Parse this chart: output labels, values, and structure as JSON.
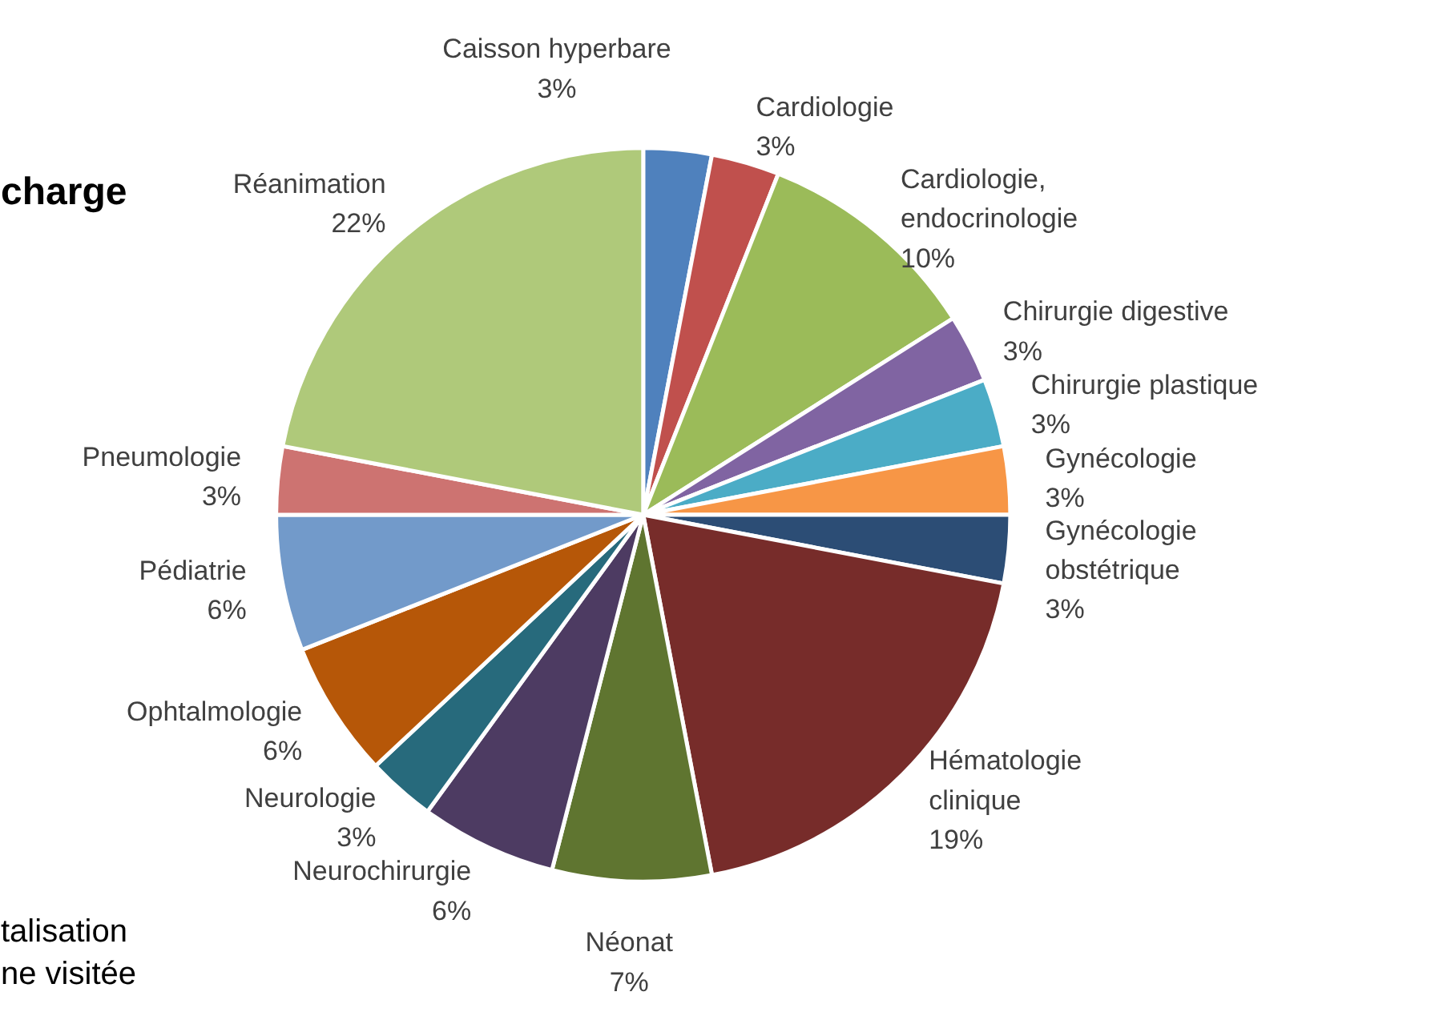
{
  "chart_data": {
    "type": "pie",
    "title": "charge",
    "annotations": [
      "talisation\nne visitée"
    ],
    "categories": [
      "Caisson hyperbare",
      "Cardiologie",
      "Cardiologie,\nendocrinologie",
      "Chirurgie digestive",
      "Chirurgie plastique",
      "Gynécologie",
      "Gynécologie\nobstétrique",
      "Hématologie\nclinique",
      "Néonat",
      "Neurochirurgie",
      "Neurologie",
      "Ophtalmologie",
      "Pédiatrie",
      "Pneumologie",
      "Réanimation"
    ],
    "values": [
      3,
      3,
      10,
      3,
      3,
      3,
      3,
      19,
      7,
      6,
      3,
      6,
      6,
      3,
      22
    ],
    "value_labels": [
      "3%",
      "3%",
      "10%",
      "3%",
      "3%",
      "3%",
      "3%",
      "19%",
      "7%",
      "6%",
      "3%",
      "6%",
      "6%",
      "3%",
      "22%"
    ],
    "colors": [
      "#4f81bd",
      "#c0504d",
      "#9bbb59",
      "#8064a2",
      "#4bacc6",
      "#f79646",
      "#2c4d75",
      "#772c2a",
      "#5f7530",
      "#4d3b62",
      "#276a7c",
      "#b65708",
      "#729aca",
      "#cd7371",
      "#afc97a"
    ]
  }
}
